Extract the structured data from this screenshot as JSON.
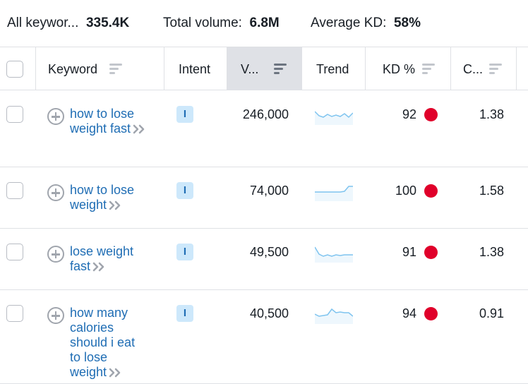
{
  "summary": {
    "keywords_label": "All keywor...",
    "keywords_value": "335.4K",
    "volume_label": "Total volume:",
    "volume_value": "6.8M",
    "kd_label": "Average KD:",
    "kd_value": "58%"
  },
  "columns": {
    "keyword": "Keyword",
    "intent": "Intent",
    "volume": "V...",
    "trend": "Trend",
    "kd": "KD %",
    "cpc": "C..."
  },
  "colors": {
    "link": "#1f6db4",
    "kd_hard": "#e0002a",
    "intent_bg": "#cde8fb",
    "trend_line": "#7fc4ef"
  },
  "rows": [
    {
      "keyword": "how to lose weight fast",
      "intent": "I",
      "volume": "246,000",
      "kd": "92",
      "cpc": "1.38",
      "trend": [
        0.85,
        0.55,
        0.45,
        0.65,
        0.5,
        0.6,
        0.5,
        0.7,
        0.45,
        0.75
      ]
    },
    {
      "keyword": "how to lose weight",
      "intent": "I",
      "volume": "74,000",
      "kd": "100",
      "cpc": "1.58",
      "trend": [
        0.55,
        0.55,
        0.55,
        0.55,
        0.55,
        0.55,
        0.55,
        0.6,
        0.95,
        0.95
      ]
    },
    {
      "keyword": "lose weight fast",
      "intent": "I",
      "volume": "49,500",
      "kd": "91",
      "cpc": "1.38",
      "trend": [
        1.0,
        0.5,
        0.35,
        0.45,
        0.35,
        0.45,
        0.4,
        0.45,
        0.45,
        0.45
      ]
    },
    {
      "keyword": "how many calories should i eat to lose weight",
      "intent": "I",
      "volume": "40,500",
      "kd": "94",
      "cpc": "0.91",
      "trend": [
        0.6,
        0.45,
        0.5,
        0.55,
        0.95,
        0.7,
        0.75,
        0.7,
        0.7,
        0.45
      ]
    }
  ]
}
